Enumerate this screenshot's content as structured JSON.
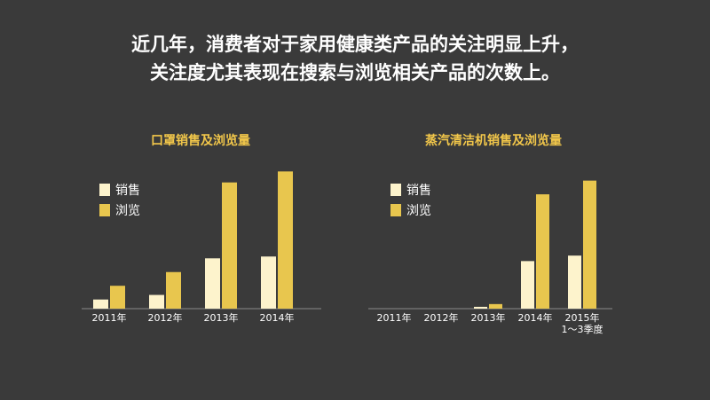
{
  "headline": {
    "line1": "近几年，消费者对于家用健康类产品的关注明显上升，",
    "line2": "关注度尤其表现在搜索与浏览相关产品的次数上。"
  },
  "colors": {
    "background": "#3a3a3a",
    "sales": "#fdf3cc",
    "views": "#e8c64e",
    "title": "#f2c74a"
  },
  "chart_data": [
    {
      "type": "bar",
      "title": "口罩销售及浏览量",
      "categories": [
        "2011年",
        "2012年",
        "2013年",
        "2014年"
      ],
      "series": [
        {
          "name": "销售",
          "values": [
            10,
            15,
            55,
            57
          ]
        },
        {
          "name": "浏览",
          "values": [
            25,
            40,
            138,
            150
          ]
        }
      ],
      "ylim": [
        0,
        160
      ],
      "xlabel": "",
      "ylabel": "",
      "grid": false,
      "legend": "top-left"
    },
    {
      "type": "bar",
      "title": "蒸汽清洁机销售及浏览量",
      "categories": [
        "2011年",
        "2012年",
        "2013年",
        "2014年",
        "2015年\n1～3季度"
      ],
      "series": [
        {
          "name": "销售",
          "values": [
            0,
            0,
            2,
            52,
            58
          ]
        },
        {
          "name": "浏览",
          "values": [
            0,
            0,
            5,
            125,
            140
          ]
        }
      ],
      "ylim": [
        0,
        160
      ],
      "xlabel": "",
      "ylabel": "",
      "grid": false,
      "legend": "top-left"
    }
  ]
}
